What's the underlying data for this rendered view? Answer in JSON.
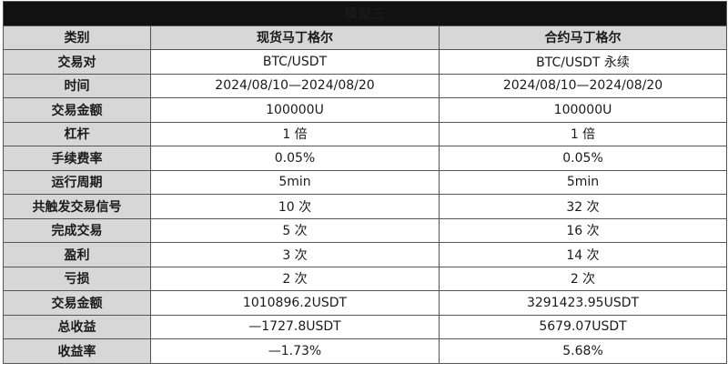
{
  "title": "模型三",
  "headers": [
    "类别",
    "现货马丁格尔",
    "合约马丁格尔"
  ],
  "rows": [
    {
      "label": "交易对",
      "spot": "BTC/USDT",
      "futures": "BTC/USDT 永续"
    },
    {
      "label": "时间",
      "spot": "2024/08/10—2024/08/20",
      "futures": "2024/08/10—2024/08/20"
    },
    {
      "label": "交易金额",
      "spot": "100000U",
      "futures": "100000U"
    },
    {
      "label": "杠杆",
      "spot": "1 倍",
      "futures": "1 倍"
    },
    {
      "label": "手续费率",
      "spot": "0.05%",
      "futures": "0.05%"
    },
    {
      "label": "运行周期",
      "spot": "5min",
      "futures": "5min"
    },
    {
      "label": "共触发交易信号",
      "spot": "10 次",
      "futures": "32 次"
    },
    {
      "label": "完成交易",
      "spot": "5 次",
      "futures": "16 次"
    },
    {
      "label": "盈利",
      "spot": "3 次",
      "futures": "14 次"
    },
    {
      "label": "亏损",
      "spot": "2 次",
      "futures": "2 次"
    },
    {
      "label": "交易金额",
      "spot": "1010896.2USDT",
      "futures": "3291423.95USDT"
    },
    {
      "label": "总收益",
      "spot": "—1727.8USDT",
      "futures": "5679.07USDT"
    },
    {
      "label": "收益率",
      "spot": "—1.73%",
      "futures": "5.68%"
    }
  ],
  "colors": {
    "title_bg": "#111111",
    "title_text": "#8ef53a",
    "header_bg": "#d7d7d7",
    "border": "#555555"
  }
}
